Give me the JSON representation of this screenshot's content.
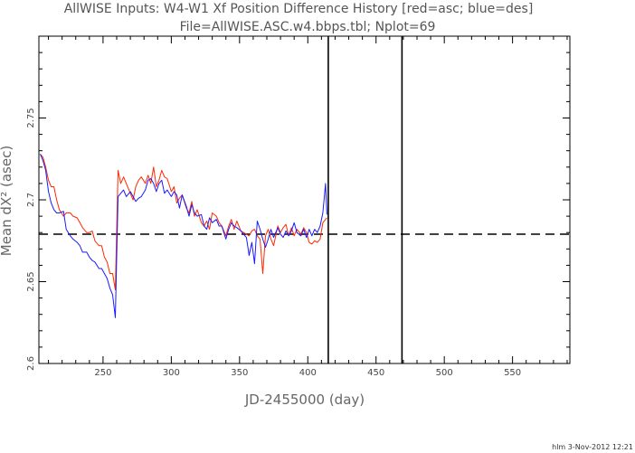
{
  "chart_data": {
    "type": "line",
    "title": "AllWISE Inputs: W4-W1 Xf Position Difference History [red=asc; blue=des]",
    "subtitle": "File=AllWISE.ASC.w4.bbps.tbl; Nplot=69",
    "xlabel": "JD-2455000 (day)",
    "ylabel": "Mean dX² (asec)",
    "footer": "hlm 3-Nov-2012 12:21",
    "xlim": [
      203,
      592
    ],
    "ylim": [
      2.6,
      2.8
    ],
    "xticks": [
      250,
      300,
      350,
      400,
      450,
      500,
      550
    ],
    "yticks": [
      2.6,
      2.65,
      2.7,
      2.75
    ],
    "xtick_labels": [
      "250",
      "300",
      "350",
      "400",
      "450",
      "500",
      "550"
    ],
    "ytick_labels": [
      "2.6",
      "2.65",
      "2.7",
      "2.75"
    ],
    "grid": false,
    "reference_hline": 2.679,
    "vlines": [
      415,
      469
    ],
    "series": [
      {
        "name": "red=asc",
        "color": "#ff2a00",
        "x": [
          204,
          206,
          208,
          210,
          212,
          214,
          216,
          218,
          221,
          223,
          226,
          228,
          231,
          233,
          235,
          238,
          240,
          242,
          244,
          247,
          249,
          251,
          253,
          255,
          257,
          259,
          261,
          263,
          265,
          267,
          270,
          272,
          274,
          276,
          278,
          281,
          283,
          285,
          287,
          289,
          291,
          293,
          295,
          297,
          300,
          302,
          304,
          306,
          308,
          311,
          313,
          315,
          317,
          319,
          322,
          324,
          326,
          328,
          330,
          333,
          335,
          337,
          340,
          342,
          344,
          346,
          348,
          351,
          353,
          355,
          357,
          359,
          361,
          363,
          365,
          367,
          369,
          371,
          373,
          375,
          378,
          380,
          382,
          384,
          386,
          388,
          390,
          392,
          395,
          397,
          399,
          401,
          403,
          405,
          407,
          409,
          411,
          413,
          414
        ],
        "y": [
          2.728,
          2.726,
          2.72,
          2.712,
          2.708,
          2.708,
          2.7,
          2.694,
          2.69,
          2.692,
          2.692,
          2.69,
          2.689,
          2.686,
          2.683,
          2.68,
          2.68,
          2.681,
          2.675,
          2.672,
          2.672,
          2.665,
          2.662,
          2.655,
          2.655,
          2.645,
          2.718,
          2.71,
          2.714,
          2.71,
          2.704,
          2.7,
          2.708,
          2.712,
          2.714,
          2.71,
          2.715,
          2.71,
          2.72,
          2.708,
          2.712,
          2.718,
          2.714,
          2.713,
          2.705,
          2.708,
          2.698,
          2.701,
          2.703,
          2.695,
          2.692,
          2.699,
          2.69,
          2.694,
          2.686,
          2.684,
          2.687,
          2.682,
          2.692,
          2.69,
          2.686,
          2.684,
          2.678,
          2.684,
          2.688,
          2.682,
          2.687,
          2.681,
          2.68,
          2.679,
          2.678,
          2.681,
          2.682,
          2.678,
          2.676,
          2.655,
          2.678,
          2.682,
          2.676,
          2.672,
          2.684,
          2.68,
          2.683,
          2.685,
          2.678,
          2.683,
          2.678,
          2.682,
          2.679,
          2.683,
          2.68,
          2.674,
          2.673,
          2.675,
          2.674,
          2.676,
          2.686,
          2.688,
          2.689
        ]
      },
      {
        "name": "blue=des",
        "color": "#1a1aff",
        "x": [
          204,
          206,
          208,
          210,
          212,
          214,
          216,
          218,
          221,
          223,
          226,
          228,
          231,
          233,
          235,
          238,
          240,
          242,
          244,
          247,
          249,
          251,
          253,
          255,
          257,
          259,
          261,
          263,
          265,
          267,
          270,
          272,
          274,
          276,
          278,
          281,
          283,
          285,
          287,
          289,
          291,
          293,
          295,
          297,
          300,
          302,
          304,
          306,
          308,
          311,
          313,
          315,
          317,
          319,
          322,
          324,
          326,
          328,
          330,
          333,
          335,
          337,
          340,
          342,
          344,
          346,
          348,
          351,
          353,
          355,
          357,
          359,
          361,
          363,
          365,
          367,
          369,
          371,
          373,
          375,
          378,
          380,
          382,
          384,
          386,
          388,
          390,
          392,
          395,
          397,
          399,
          401,
          403,
          405,
          407,
          409,
          411,
          413,
          414
        ],
        "y": [
          2.728,
          2.724,
          2.718,
          2.705,
          2.698,
          2.694,
          2.692,
          2.692,
          2.693,
          2.682,
          2.678,
          2.676,
          2.674,
          2.672,
          2.668,
          2.668,
          2.665,
          2.663,
          2.662,
          2.658,
          2.658,
          2.655,
          2.652,
          2.646,
          2.642,
          2.628,
          2.702,
          2.704,
          2.706,
          2.702,
          2.705,
          2.702,
          2.699,
          2.701,
          2.702,
          2.706,
          2.712,
          2.713,
          2.71,
          2.705,
          2.71,
          2.712,
          2.704,
          2.706,
          2.702,
          2.705,
          2.703,
          2.695,
          2.703,
          2.696,
          2.69,
          2.697,
          2.692,
          2.69,
          2.691,
          2.684,
          2.682,
          2.689,
          2.686,
          2.688,
          2.684,
          2.684,
          2.676,
          2.682,
          2.686,
          2.684,
          2.683,
          2.681,
          2.679,
          2.677,
          2.666,
          2.674,
          2.661,
          2.687,
          2.682,
          2.676,
          2.671,
          2.676,
          2.682,
          2.677,
          2.683,
          2.679,
          2.677,
          2.681,
          2.678,
          2.681,
          2.686,
          2.68,
          2.678,
          2.682,
          2.677,
          2.682,
          2.678,
          2.682,
          2.68,
          2.684,
          2.692,
          2.71,
          2.691
        ]
      }
    ]
  }
}
